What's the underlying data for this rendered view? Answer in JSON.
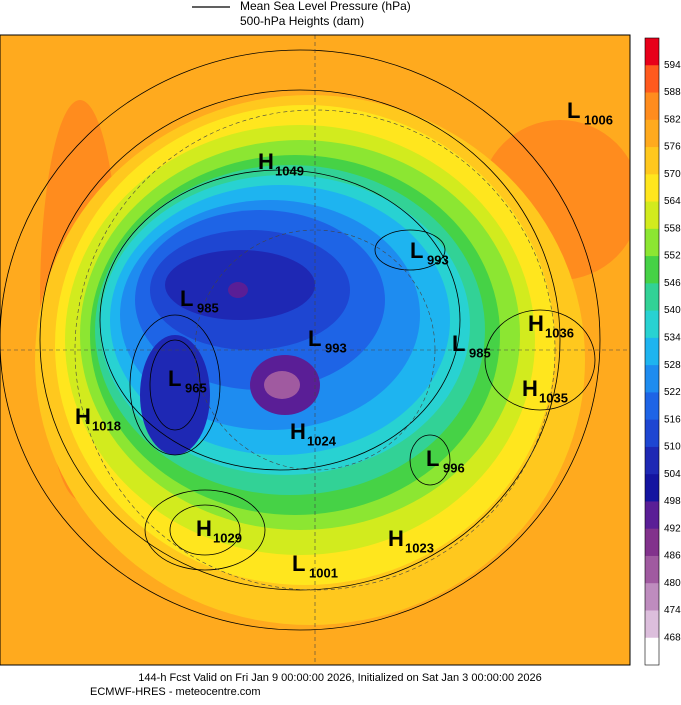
{
  "header": {
    "lines": [
      "Mean Sea Level Pressure (hPa)",
      "500-hPa Heights (dam)"
    ]
  },
  "colorbar": {
    "labels": [
      594,
      588,
      582,
      576,
      570,
      564,
      558,
      552,
      546,
      540,
      534,
      528,
      522,
      516,
      510,
      504,
      498,
      492,
      486,
      480,
      474,
      468
    ],
    "colors": [
      "#e8001a",
      "#ff5a1e",
      "#ff8c1e",
      "#ffaa1e",
      "#ffc81e",
      "#ffe61e",
      "#d2eb1e",
      "#8ce632",
      "#46d246",
      "#32d296",
      "#28d2d2",
      "#1eb4f0",
      "#1e8cf0",
      "#1e64e6",
      "#1e46d2",
      "#1e28b4",
      "#1414a0",
      "#5a1e96",
      "#82328c",
      "#a05aa0",
      "#be8cbe",
      "#dcbedc",
      "#ffffff"
    ]
  },
  "centers": [
    {
      "letter": "L",
      "value": "1006"
    },
    {
      "letter": "H",
      "value": "1049"
    },
    {
      "letter": "L",
      "value": "993"
    },
    {
      "letter": "L",
      "value": "985"
    },
    {
      "letter": "L",
      "value": "993"
    },
    {
      "letter": "L",
      "value": "985"
    },
    {
      "letter": "H",
      "value": "1036"
    },
    {
      "letter": "L",
      "value": "965"
    },
    {
      "letter": "H",
      "value": "1035"
    },
    {
      "letter": "H",
      "value": "1018"
    },
    {
      "letter": "H",
      "value": "1024"
    },
    {
      "letter": "L",
      "value": "996"
    },
    {
      "letter": "H",
      "value": "1029"
    },
    {
      "letter": "H",
      "value": "1023"
    },
    {
      "letter": "L",
      "value": "1001"
    }
  ],
  "footer": {
    "lines": [
      "144-h Fcst Valid on Fri Jan  9 00:00:00 2026, Initialized on Sat Jan  3 00:00:00 2026",
      "ECMWF-HRES  - meteocentre.com"
    ]
  }
}
